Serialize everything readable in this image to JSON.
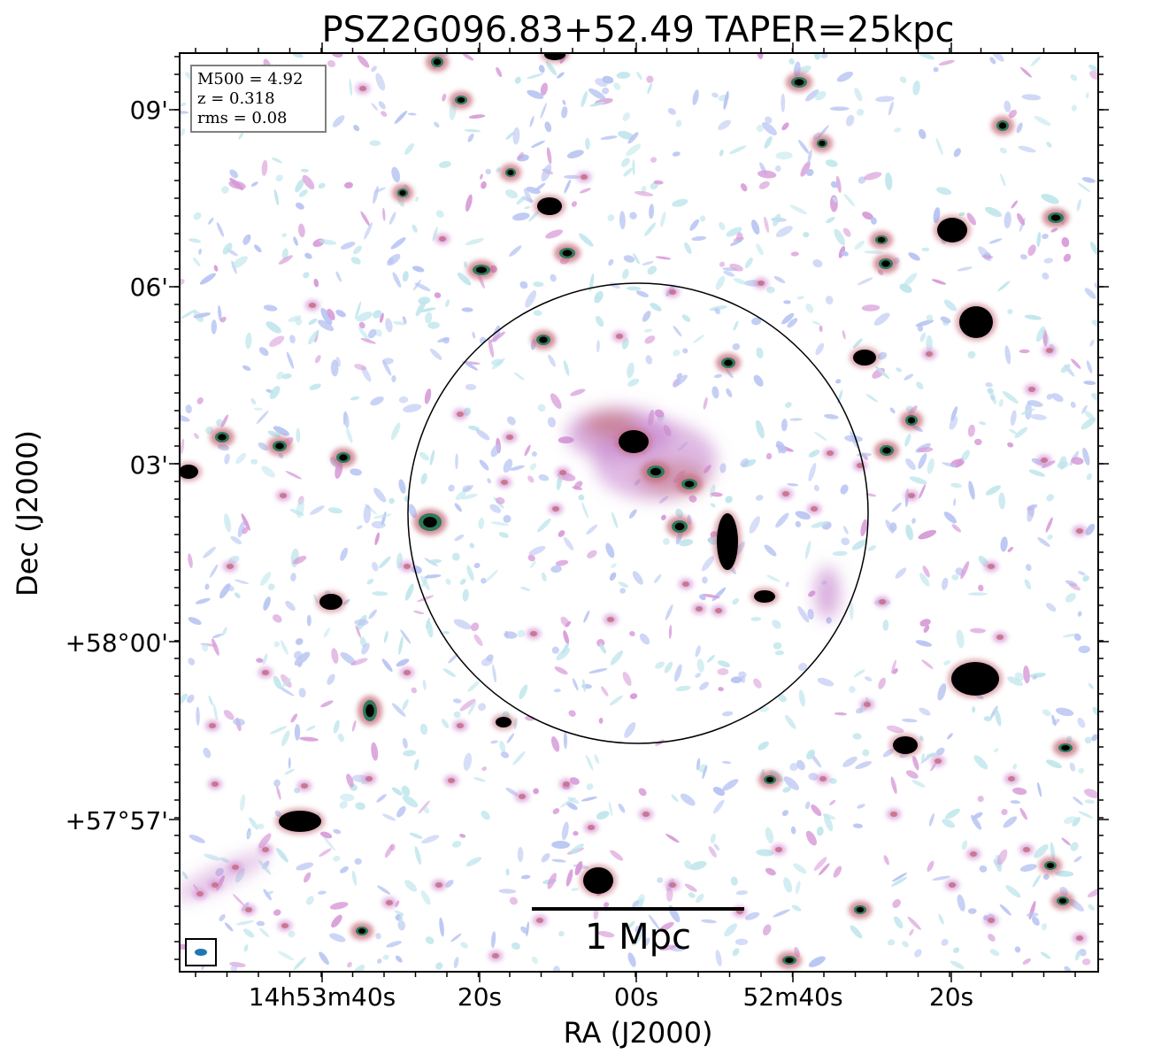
{
  "title": "PSZ2G096.83+52.49 TAPER=25kpc",
  "axes": {
    "xlabel": "RA (J2000)",
    "ylabel": "Dec (J2000)",
    "x_ticks": [
      "14h53m40s",
      "20s",
      "00s",
      "52m40s",
      "20s"
    ],
    "y_ticks": [
      "09'",
      "06'",
      "03'",
      "+58°00'",
      "+57°57'"
    ]
  },
  "info_box": {
    "m500": "M500 = 4.92",
    "z": "z = 0.318",
    "rms": "rms = 0.08"
  },
  "scale_bar": {
    "label": "1 Mpc"
  },
  "colors": {
    "frame": "#000000",
    "beam": "#1f77b4",
    "noise_faint": "#bfe6ec",
    "noise_blue": "#b7c4f2",
    "emission_pink": "#d79ad8",
    "emission_red": "#c46a7a",
    "source_core": "#000000",
    "source_edge": "#2d7a5a"
  }
}
